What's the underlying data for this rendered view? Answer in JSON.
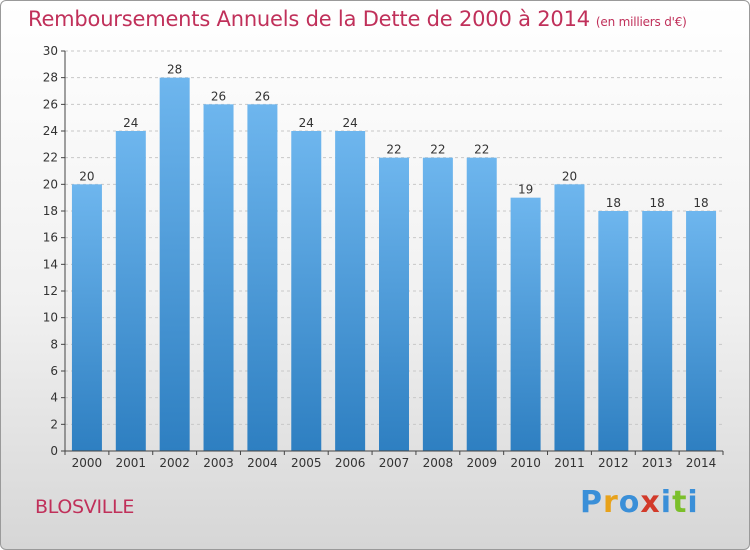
{
  "header": {
    "title": "Remboursements Annuels de la Dette de 2000 à 2014",
    "subtitle": "(en milliers d'€)"
  },
  "footer": {
    "city": "BLOSVILLE",
    "logo_text": "Proxiti",
    "logo_letters": [
      {
        "ch": "P",
        "color": "#3a8fd8"
      },
      {
        "ch": "r",
        "color": "#e8a21a"
      },
      {
        "ch": "o",
        "color": "#3a8fd8"
      },
      {
        "ch": "x",
        "color": "#d23a2a"
      },
      {
        "ch": "i",
        "color": "#3a8fd8"
      },
      {
        "ch": "t",
        "color": "#7bbf2a"
      },
      {
        "ch": "i",
        "color": "#3a8fd8"
      }
    ]
  },
  "chart_data": {
    "type": "bar",
    "title": "Remboursements Annuels de la Dette de 2000 à 2014",
    "subtitle": "(en milliers d'€)",
    "categories": [
      "2000",
      "2001",
      "2002",
      "2003",
      "2004",
      "2005",
      "2006",
      "2007",
      "2008",
      "2009",
      "2010",
      "2011",
      "2012",
      "2013",
      "2014"
    ],
    "values": [
      20,
      24,
      28,
      26,
      26,
      24,
      24,
      22,
      22,
      22,
      19,
      20,
      18,
      18,
      18
    ],
    "data_labels": [
      "20",
      "24",
      "28",
      "26",
      "26",
      "24",
      "24",
      "22",
      "22",
      "22",
      "19",
      "20",
      "18",
      "18",
      "18"
    ],
    "ylim": [
      0,
      30
    ],
    "yticks": [
      0,
      2,
      4,
      6,
      8,
      10,
      12,
      14,
      16,
      18,
      20,
      22,
      24,
      26,
      28,
      30
    ],
    "grid": "horizontal dashed",
    "colors": {
      "bar_top": "#6eb6ee",
      "bar_bottom": "#2e7fc1",
      "grid": "#c8c8c8",
      "axis": "#444444"
    }
  }
}
